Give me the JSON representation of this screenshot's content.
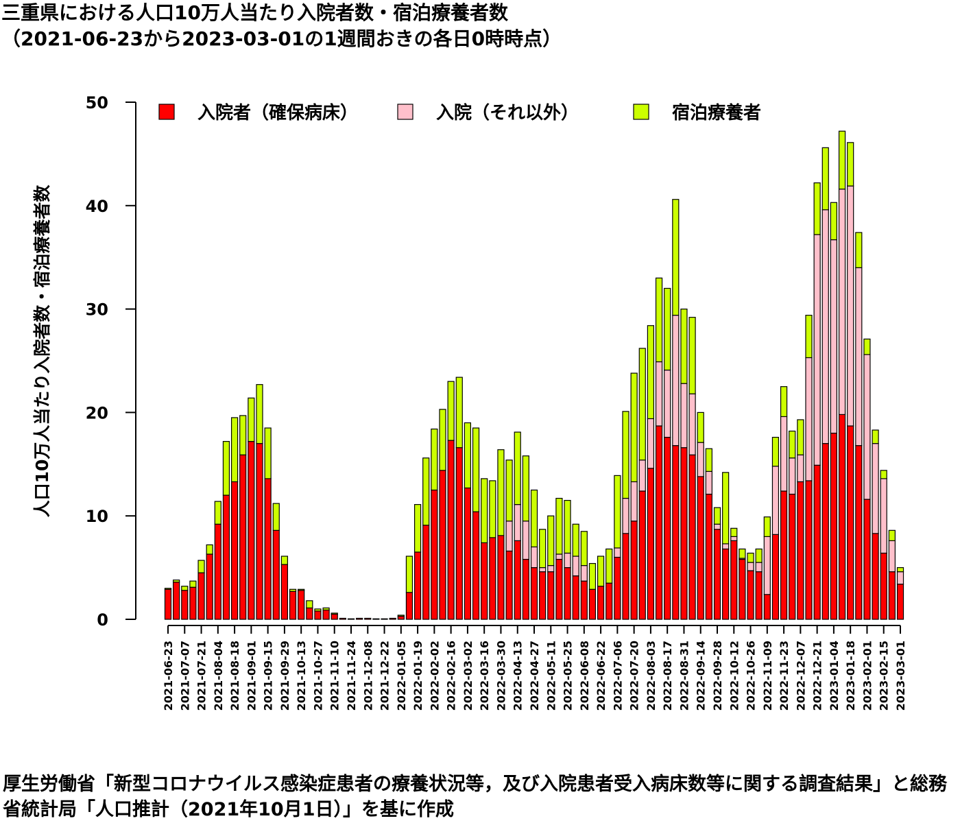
{
  "title_line1": "三重県における人口10万人当たり入院者数・宿泊療養者数",
  "title_line2": "（2021-06-23から2023-03-01の1週間おきの各日0時時点）",
  "caption": "厚生労働省「新型コロナウイルス感染症患者の療養状況等，及び入院患者受入病床数等に関する調査結果」と総務省統計局「人口推計（2021年10月1日）」を基に作成",
  "chart_data": {
    "type": "bar",
    "stacked": true,
    "ylabel": "人口10万人当たり入院者数・宿泊療養者数",
    "ylim": [
      0,
      50
    ],
    "yticks": [
      0,
      10,
      20,
      30,
      40,
      50
    ],
    "legend_position": "top",
    "categories": [
      "2021-06-23",
      "2021-06-30",
      "2021-07-07",
      "2021-07-14",
      "2021-07-21",
      "2021-07-28",
      "2021-08-04",
      "2021-08-11",
      "2021-08-18",
      "2021-08-25",
      "2021-09-01",
      "2021-09-08",
      "2021-09-15",
      "2021-09-22",
      "2021-09-29",
      "2021-10-06",
      "2021-10-13",
      "2021-10-20",
      "2021-10-27",
      "2021-11-03",
      "2021-11-10",
      "2021-11-17",
      "2021-11-24",
      "2021-12-01",
      "2021-12-08",
      "2021-12-15",
      "2021-12-22",
      "2021-12-29",
      "2022-01-05",
      "2022-01-12",
      "2022-01-19",
      "2022-01-26",
      "2022-02-02",
      "2022-02-09",
      "2022-02-16",
      "2022-02-23",
      "2022-03-02",
      "2022-03-09",
      "2022-03-16",
      "2022-03-23",
      "2022-03-30",
      "2022-04-06",
      "2022-04-13",
      "2022-04-20",
      "2022-04-27",
      "2022-05-04",
      "2022-05-11",
      "2022-05-18",
      "2022-05-25",
      "2022-06-01",
      "2022-06-08",
      "2022-06-15",
      "2022-06-22",
      "2022-06-29",
      "2022-07-06",
      "2022-07-13",
      "2022-07-20",
      "2022-07-27",
      "2022-08-03",
      "2022-08-10",
      "2022-08-17",
      "2022-08-24",
      "2022-08-31",
      "2022-09-07",
      "2022-09-14",
      "2022-09-21",
      "2022-09-28",
      "2022-10-05",
      "2022-10-12",
      "2022-10-19",
      "2022-10-26",
      "2022-11-02",
      "2022-11-09",
      "2022-11-16",
      "2022-11-23",
      "2022-11-30",
      "2022-12-07",
      "2022-12-14",
      "2022-12-21",
      "2022-12-28",
      "2023-01-04",
      "2023-01-11",
      "2023-01-18",
      "2023-01-25",
      "2023-02-01",
      "2023-02-08",
      "2023-02-15",
      "2023-02-22",
      "2023-03-01"
    ],
    "xtick_labels_every": 2,
    "series": [
      {
        "name": "入院者（確保病床）",
        "color": "#ff0000",
        "values": [
          2.9,
          3.6,
          2.8,
          3.1,
          4.5,
          6.3,
          9.2,
          12.0,
          13.3,
          15.9,
          17.2,
          17.0,
          13.6,
          8.6,
          5.3,
          2.7,
          2.8,
          1.1,
          0.8,
          0.9,
          0.5,
          0.1,
          0.05,
          0.1,
          0.1,
          0.05,
          0.05,
          0.1,
          0.3,
          2.6,
          6.5,
          9.1,
          12.5,
          14.4,
          17.3,
          16.6,
          12.7,
          10.4,
          7.4,
          7.9,
          8.1,
          6.6,
          7.6,
          5.8,
          5.0,
          4.6,
          4.6,
          5.8,
          5.0,
          4.2,
          3.7,
          2.9,
          3.2,
          3.5,
          6.0,
          8.3,
          9.5,
          12.4,
          14.6,
          18.7,
          17.6,
          16.8,
          16.6,
          15.9,
          13.8,
          12.1,
          8.7,
          6.8,
          7.6,
          5.8,
          4.7,
          4.6,
          2.4,
          8.2,
          12.4,
          12.1,
          13.3,
          13.4,
          14.9,
          17.0,
          18.0,
          19.8,
          18.7,
          16.8,
          11.6,
          8.3,
          6.4,
          4.6,
          3.4
        ]
      },
      {
        "name": "入院（それ以外）",
        "color": "#ffc0cb",
        "values": [
          0,
          0,
          0,
          0,
          0,
          0,
          0,
          0,
          0,
          0,
          0,
          0,
          0,
          0,
          0,
          0,
          0,
          0,
          0,
          0,
          0,
          0,
          0,
          0,
          0,
          0,
          0,
          0,
          0,
          0,
          0,
          0,
          0,
          0,
          0,
          0,
          0,
          0,
          0,
          0,
          0,
          2.9,
          3.5,
          3.7,
          2.0,
          0.4,
          0.6,
          0.5,
          1.4,
          1.9,
          1.5,
          0,
          0,
          0,
          0.9,
          3.4,
          3.8,
          3.0,
          4.8,
          6.2,
          6.5,
          12.6,
          6.2,
          5.9,
          3.3,
          2.2,
          0.5,
          0.5,
          0.4,
          0.1,
          0.8,
          0.9,
          5.6,
          6.6,
          7.2,
          3.5,
          2.6,
          11.9,
          22.3,
          22.6,
          18.7,
          21.8,
          23.2,
          17.2,
          14.0,
          8.7,
          7.2,
          3.0,
          1.2
        ]
      },
      {
        "name": "宿泊療養者",
        "color": "#ccff00",
        "values": [
          0.1,
          0.2,
          0.4,
          0.6,
          1.2,
          0.9,
          2.2,
          5.2,
          6.2,
          3.8,
          4.2,
          5.7,
          4.9,
          2.6,
          0.8,
          0.2,
          0.1,
          0.7,
          0.2,
          0.2,
          0.1,
          0,
          0,
          0,
          0,
          0,
          0,
          0,
          0.1,
          3.5,
          4.6,
          6.5,
          5.9,
          5.9,
          5.7,
          6.8,
          6.3,
          8.1,
          6.2,
          5.5,
          8.3,
          5.9,
          7.0,
          6.3,
          5.5,
          3.7,
          4.8,
          5.4,
          5.1,
          3.1,
          3.3,
          2.5,
          2.9,
          3.3,
          7.0,
          8.4,
          10.5,
          10.8,
          9.0,
          8.1,
          7.9,
          11.2,
          7.2,
          7.4,
          2.9,
          2.2,
          1.6,
          6.9,
          0.8,
          0.9,
          0.9,
          1.3,
          1.9,
          2.8,
          2.9,
          2.6,
          3.4,
          4.1,
          5.0,
          6.0,
          3.6,
          5.6,
          4.2,
          3.4,
          1.5,
          1.3,
          0.8,
          1.0,
          0.4
        ]
      }
    ]
  }
}
